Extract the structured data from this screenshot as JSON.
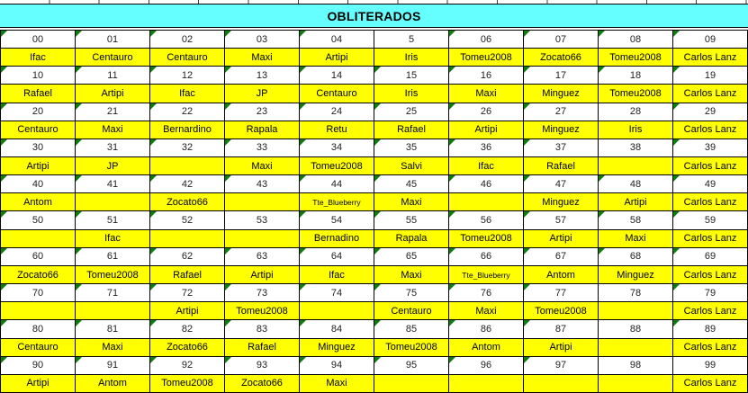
{
  "header": {
    "title": "OBLITERADOS"
  },
  "colors": {
    "header_bg": "#66FFFF",
    "number_cell_bg": "#FFFFFF",
    "name_cell_bg": "#FFFF00",
    "border": "#000000",
    "marker_green": "#0E7E0E"
  },
  "table": {
    "groups": [
      {
        "numbers": [
          "00",
          "01",
          "02",
          "03",
          "04",
          "5",
          "06",
          "07",
          "08",
          "09"
        ],
        "markers": [
          1,
          1,
          1,
          1,
          1,
          0,
          1,
          1,
          1,
          1
        ],
        "names": [
          "Ifac",
          "Centauro",
          "Centauro",
          "Maxi",
          "Artipi",
          "Iris",
          "Tomeu2008",
          "Zocato66",
          "Tomeu2008",
          "Carlos Lanz"
        ]
      },
      {
        "numbers": [
          "10",
          "11",
          "12",
          "13",
          "14",
          "15",
          "16",
          "17",
          "18",
          "19"
        ],
        "markers": [
          1,
          1,
          1,
          1,
          1,
          1,
          1,
          1,
          1,
          1
        ],
        "names": [
          "Rafael",
          "Artipi",
          "Ifac",
          "JP",
          "Centauro",
          "Iris",
          "Maxi",
          "Minguez",
          "Tomeu2008",
          "Carlos Lanz"
        ]
      },
      {
        "numbers": [
          "20",
          "21",
          "22",
          "23",
          "24",
          "25",
          "26",
          "27",
          "28",
          "29"
        ],
        "markers": [
          1,
          1,
          1,
          1,
          1,
          1,
          1,
          1,
          0,
          1
        ],
        "names": [
          "Centauro",
          "Maxi",
          "Bernardino",
          "Rapala",
          "Retu",
          "Rafael",
          "Artipi",
          "Minguez",
          "Iris",
          "Carlos Lanz"
        ]
      },
      {
        "numbers": [
          "30",
          "31",
          "32",
          "33",
          "34",
          "35",
          "36",
          "37",
          "38",
          "39"
        ],
        "markers": [
          1,
          1,
          1,
          1,
          1,
          1,
          1,
          1,
          0,
          1
        ],
        "names": [
          "Artipi",
          "JP",
          "",
          "Maxi",
          "Tomeu2008",
          "Salvi",
          "Ifac",
          "Rafael",
          "",
          "Carlos Lanz"
        ]
      },
      {
        "numbers": [
          "40",
          "41",
          "42",
          "43",
          "44",
          "45",
          "46",
          "47",
          "48",
          "49"
        ],
        "markers": [
          1,
          1,
          1,
          1,
          1,
          1,
          1,
          1,
          1,
          1
        ],
        "names": [
          "Antom",
          "",
          "Zocato66",
          "",
          "Tte_Blueberry",
          "Maxi",
          "",
          "Minguez",
          "Artipi",
          "Carlos Lanz"
        ]
      },
      {
        "numbers": [
          "50",
          "51",
          "52",
          "53",
          "54",
          "55",
          "56",
          "57",
          "58",
          "59"
        ],
        "markers": [
          1,
          1,
          1,
          0,
          1,
          1,
          1,
          1,
          1,
          1
        ],
        "names": [
          "",
          "Ifac",
          "",
          "",
          "Bernadino",
          "Rapala",
          "Tomeu2008",
          "Artipi",
          "Maxi",
          "Carlos Lanz"
        ]
      },
      {
        "numbers": [
          "60",
          "61",
          "62",
          "63",
          "64",
          "65",
          "66",
          "67",
          "68",
          "69"
        ],
        "markers": [
          1,
          1,
          1,
          1,
          1,
          1,
          1,
          1,
          1,
          1
        ],
        "names": [
          "Zocato66",
          "Tomeu2008",
          "Rafael",
          "Artipi",
          "Ifac",
          "Maxi",
          "Tte_Blueberry",
          "Antom",
          "Minguez",
          "Carlos Lanz"
        ]
      },
      {
        "numbers": [
          "70",
          "71",
          "72",
          "73",
          "74",
          "75",
          "76",
          "77",
          "78",
          "79"
        ],
        "markers": [
          1,
          1,
          1,
          1,
          1,
          1,
          1,
          1,
          0,
          1
        ],
        "names": [
          "",
          "",
          "Artipi",
          "Tomeu2008",
          "",
          "Centauro",
          "Maxi",
          "Tomeu2008",
          "",
          "Carlos Lanz"
        ]
      },
      {
        "numbers": [
          "80",
          "81",
          "82",
          "83",
          "84",
          "85",
          "86",
          "87",
          "88",
          "89"
        ],
        "markers": [
          1,
          1,
          1,
          1,
          1,
          1,
          1,
          1,
          0,
          1
        ],
        "names": [
          "Centauro",
          "Maxi",
          "Zocato66",
          "Rafael",
          "Minguez",
          "Tomeu2008",
          "Antom",
          "Artipi",
          "",
          "Carlos Lanz"
        ]
      },
      {
        "numbers": [
          "90",
          "91",
          "92",
          "93",
          "94",
          "95",
          "96",
          "97",
          "98",
          "99"
        ],
        "markers": [
          1,
          1,
          1,
          1,
          1,
          1,
          1,
          1,
          0,
          0
        ],
        "names": [
          "Artipi",
          "Antom",
          "Tomeu2008",
          "Zocato66",
          "Maxi",
          "",
          "",
          "",
          "",
          "Carlos Lanz"
        ]
      }
    ]
  }
}
